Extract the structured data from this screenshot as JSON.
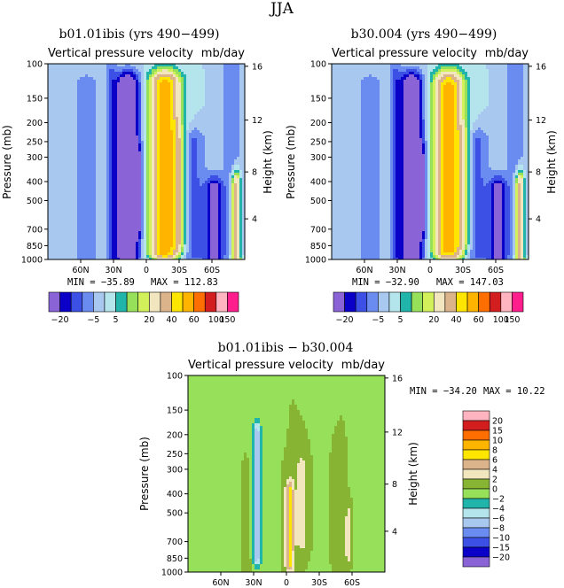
{
  "figure_title": "JJA",
  "palettes": {
    "top": [
      "#8a64d6",
      "#0a00c8",
      "#3c50e6",
      "#6a8cf0",
      "#a8c8f0",
      "#b4e4ec",
      "#20b4aa",
      "#96e05a",
      "#d2f05a",
      "#f2e6be",
      "#dcb48c",
      "#ffe600",
      "#ffb400",
      "#ff6e00",
      "#d21e1e",
      "#ffb4c0",
      "#ff1e8c"
    ],
    "diff": [
      "#8a64d6",
      "#0a00c8",
      "#3c50e6",
      "#6a8cf0",
      "#a8c8f0",
      "#b4e4ec",
      "#20b4aa",
      "#96e05a",
      "#87b432",
      "#f2e6be",
      "#dcb48c",
      "#ffe600",
      "#ffb400",
      "#ff6e00",
      "#d21e1e",
      "#ffb4c0",
      "#ff1e8c"
    ]
  },
  "chart_data": [
    {
      "type": "heatmap",
      "title": "b01.01ibis (yrs 490−499)",
      "subtitle": "Vertical pressure velocity",
      "units": "mb/day",
      "ylabel": "Pressure (mb)",
      "ylabel_right": "Height (km)",
      "x_ticks": [
        "60N",
        "30N",
        "0",
        "30S",
        "60S"
      ],
      "x_tick_lat": [
        60,
        30,
        0,
        -30,
        -60
      ],
      "xlim_lat": [
        90,
        -90
      ],
      "y_ticks": [
        "100",
        "150",
        "200",
        "250",
        "300",
        "400",
        "500",
        "700",
        "850",
        "1000"
      ],
      "y_tick_p": [
        100,
        150,
        200,
        250,
        300,
        400,
        500,
        700,
        850,
        1000
      ],
      "y_scale": "log",
      "ylim_p": [
        100,
        1000
      ],
      "right_ticks": [
        "16",
        "12",
        "8",
        "4"
      ],
      "right_tick_p": [
        103,
        194,
        357,
        620
      ],
      "min_label": "MIN = −35.89",
      "max_label": "MAX = 112.83",
      "min": -35.89,
      "max": 112.83,
      "levels": [
        -20,
        -15,
        -10,
        -5,
        0,
        5,
        10,
        15,
        20,
        30,
        40,
        50,
        60,
        80,
        100,
        150
      ],
      "level_labels": [
        "−20",
        "−5",
        "5",
        "20",
        "40",
        "60",
        "100",
        "150"
      ],
      "label_index": [
        0,
        3,
        5,
        8,
        10,
        12,
        14,
        15
      ],
      "features": [
        {
          "lat": 17,
          "p0": 130,
          "p1": 950,
          "v": -35,
          "w": 11
        },
        {
          "lat": 8,
          "p0": 300,
          "p1": 700,
          "v": -12,
          "w": 5
        },
        {
          "lat": -17,
          "p0": 130,
          "p1": 900,
          "v": 60,
          "w": 13
        },
        {
          "lat": -30,
          "p0": 250,
          "p1": 800,
          "v": 15,
          "w": 6
        },
        {
          "lat": -42,
          "p0": 250,
          "p1": 950,
          "v": -12,
          "w": 12
        },
        {
          "lat": -62,
          "p0": 450,
          "p1": 1000,
          "v": -25,
          "w": 8
        },
        {
          "lat": -82,
          "p0": 420,
          "p1": 1000,
          "v": 40,
          "w": 4
        },
        {
          "lat": 55,
          "p0": 130,
          "p1": 1000,
          "v": -8,
          "w": 13
        },
        {
          "lat": 32,
          "p0": 110,
          "p1": 1000,
          "v": -9,
          "w": 5
        },
        {
          "lat": -78,
          "p0": 100,
          "p1": 900,
          "v": -8,
          "w": 10
        }
      ]
    },
    {
      "type": "heatmap",
      "title": "b30.004 (yrs 490−499)",
      "subtitle": "Vertical pressure velocity",
      "units": "mb/day",
      "ylabel": "Pressure (mb)",
      "ylabel_right": "Height (km)",
      "x_ticks": [
        "60N",
        "30N",
        "0",
        "30S",
        "60S"
      ],
      "x_tick_lat": [
        60,
        30,
        0,
        -30,
        -60
      ],
      "xlim_lat": [
        90,
        -90
      ],
      "y_ticks": [
        "100",
        "150",
        "200",
        "250",
        "300",
        "400",
        "500",
        "700",
        "850",
        "1000"
      ],
      "y_tick_p": [
        100,
        150,
        200,
        250,
        300,
        400,
        500,
        700,
        850,
        1000
      ],
      "y_scale": "log",
      "ylim_p": [
        100,
        1000
      ],
      "right_ticks": [
        "16",
        "12",
        "8",
        "4"
      ],
      "right_tick_p": [
        103,
        194,
        357,
        620
      ],
      "min_label": "MIN = −32.90",
      "max_label": "MAX = 147.03",
      "min": -32.9,
      "max": 147.03,
      "levels": [
        -20,
        -15,
        -10,
        -5,
        0,
        5,
        10,
        15,
        20,
        30,
        40,
        50,
        60,
        80,
        100,
        150
      ],
      "level_labels": [
        "−20",
        "−5",
        "5",
        "20",
        "40",
        "60",
        "100",
        "150"
      ],
      "label_index": [
        0,
        3,
        5,
        8,
        10,
        12,
        14,
        15
      ],
      "features": [
        {
          "lat": 17,
          "p0": 130,
          "p1": 950,
          "v": -33,
          "w": 11
        },
        {
          "lat": 8,
          "p0": 300,
          "p1": 700,
          "v": -12,
          "w": 5
        },
        {
          "lat": -17,
          "p0": 130,
          "p1": 900,
          "v": 55,
          "w": 13
        },
        {
          "lat": -30,
          "p0": 250,
          "p1": 800,
          "v": 15,
          "w": 6
        },
        {
          "lat": -42,
          "p0": 250,
          "p1": 950,
          "v": -12,
          "w": 12
        },
        {
          "lat": -62,
          "p0": 450,
          "p1": 1000,
          "v": -25,
          "w": 8
        },
        {
          "lat": -82,
          "p0": 420,
          "p1": 1000,
          "v": 40,
          "w": 4
        },
        {
          "lat": 55,
          "p0": 130,
          "p1": 1000,
          "v": -8,
          "w": 13
        },
        {
          "lat": 32,
          "p0": 110,
          "p1": 1000,
          "v": -9,
          "w": 5
        },
        {
          "lat": -78,
          "p0": 100,
          "p1": 900,
          "v": -8,
          "w": 10
        }
      ]
    },
    {
      "type": "heatmap",
      "title": "b01.01ibis − b30.004",
      "subtitle": "Vertical pressure velocity",
      "units": "mb/day",
      "ylabel": "Pressure (mb)",
      "ylabel_right": "Height (km)",
      "x_ticks": [
        "60N",
        "30N",
        "0",
        "30S",
        "60S"
      ],
      "x_tick_lat": [
        60,
        30,
        0,
        -30,
        -60
      ],
      "xlim_lat": [
        90,
        -90
      ],
      "y_ticks": [
        "100",
        "150",
        "200",
        "250",
        "300",
        "400",
        "500",
        "700",
        "850",
        "1000"
      ],
      "y_tick_p": [
        100,
        150,
        200,
        250,
        300,
        400,
        500,
        700,
        850,
        1000
      ],
      "y_scale": "log",
      "ylim_p": [
        100,
        1000
      ],
      "right_ticks": [
        "16",
        "12",
        "8",
        "4"
      ],
      "right_tick_p": [
        103,
        194,
        357,
        620
      ],
      "min_label": "MIN = −34.20",
      "max_label": "MAX =  10.22",
      "min": -34.2,
      "max": 10.22,
      "levels": [
        -20,
        -15,
        -10,
        -8,
        -6,
        -4,
        -2,
        0,
        2,
        4,
        6,
        8,
        10,
        15,
        20
      ],
      "level_labels": [
        "20",
        "15",
        "10",
        "8",
        "6",
        "4",
        "2",
        "0",
        "−2",
        "−4",
        "−6",
        "−8",
        "−10",
        "−15",
        "−20"
      ],
      "features": [
        {
          "lat": 27,
          "p0": 200,
          "p1": 850,
          "v": -7,
          "w": 4
        },
        {
          "lat": -3,
          "p0": 400,
          "p1": 900,
          "v": 7,
          "w": 4
        },
        {
          "lat": -14,
          "p0": 300,
          "p1": 700,
          "v": 3.5,
          "w": 5
        },
        {
          "lat": -57,
          "p0": 550,
          "p1": 800,
          "v": 4,
          "w": 3
        },
        {
          "lat": 80,
          "p0": 150,
          "p1": 1000,
          "v": -1.5,
          "w": 7
        },
        {
          "lat": 50,
          "p0": 110,
          "p1": 1000,
          "v": -1.2,
          "w": 6
        },
        {
          "lat": 13,
          "p0": 200,
          "p1": 1000,
          "v": -1.2,
          "w": 4
        },
        {
          "lat": -34,
          "p0": 150,
          "p1": 1000,
          "v": -1.3,
          "w": 6
        },
        {
          "lat": -68,
          "p0": 100,
          "p1": 1000,
          "v": -1.2,
          "w": 6
        },
        {
          "lat": 36,
          "p0": 350,
          "p1": 950,
          "v": 1.2,
          "w": 5
        },
        {
          "lat": -45,
          "p0": 250,
          "p1": 900,
          "v": 1.2,
          "w": 5
        }
      ]
    }
  ]
}
